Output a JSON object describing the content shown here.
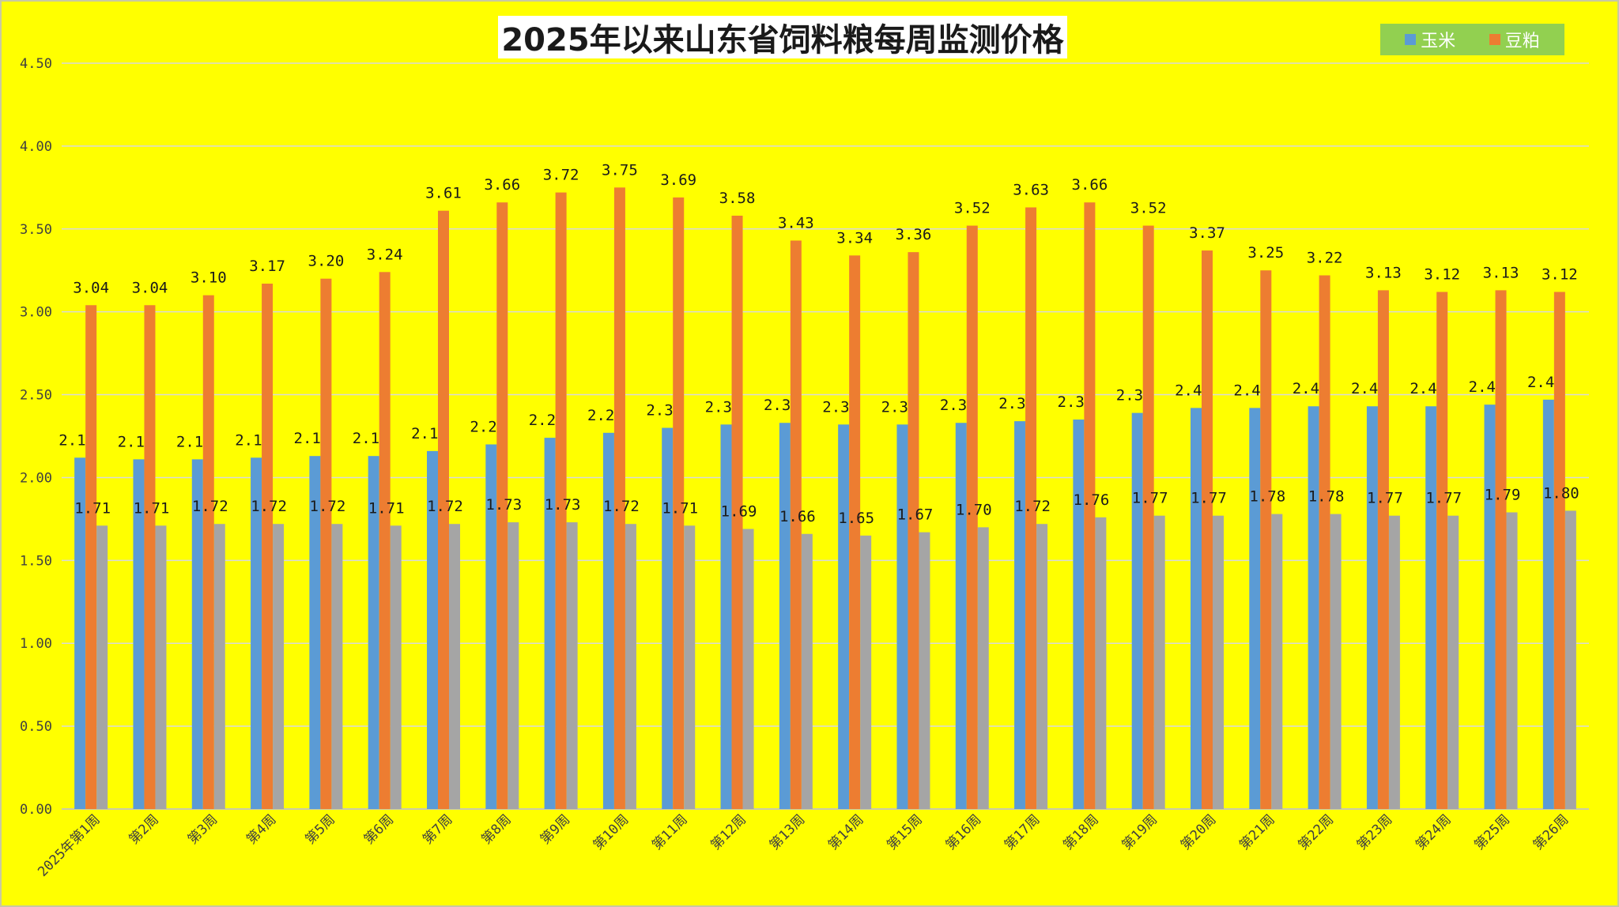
{
  "title": "2025年以来山东省饲料粮每周监测价格",
  "legend": {
    "items": [
      {
        "label": "玉米"
      },
      {
        "label": "豆粕"
      }
    ]
  },
  "colors": {
    "background": "#ffff00",
    "corn": "#5b9bd5",
    "soymeal": "#ed7d31",
    "third": "#a5a5a5",
    "legend_bg": "#92d050",
    "grid": "#d9d9d9"
  },
  "chart_data": {
    "type": "bar",
    "title": "2025年以来山东省饲料粮每周监测价格",
    "xlabel": "",
    "ylabel": "",
    "ylim": [
      0,
      4.5
    ],
    "yticks": [
      "0.00",
      "0.50",
      "1.00",
      "1.50",
      "2.00",
      "2.50",
      "3.00",
      "3.50",
      "4.00",
      "4.50"
    ],
    "grid": true,
    "legend_position": "top-right",
    "categories": [
      "2025年第1周",
      "第2周",
      "第3周",
      "第4周",
      "第5周",
      "第6周",
      "第7周",
      "第8周",
      "第9周",
      "第10周",
      "第11周",
      "第12周",
      "第13周",
      "第14周",
      "第15周",
      "第16周",
      "第17周",
      "第18周",
      "第19周",
      "第20周",
      "第21周",
      "第22周",
      "第23周",
      "第24周",
      "第25周",
      "第26周"
    ],
    "series": [
      {
        "name": "玉米",
        "color": "#5b9bd5",
        "values": [
          2.12,
          2.11,
          2.11,
          2.12,
          2.13,
          2.13,
          2.16,
          2.2,
          2.24,
          2.27,
          2.3,
          2.32,
          2.33,
          2.32,
          2.32,
          2.33,
          2.34,
          2.35,
          2.39,
          2.42,
          2.42,
          2.43,
          2.43,
          2.43,
          2.44,
          2.47
        ],
        "labels": [
          "2.12",
          "2.11",
          "2.11",
          "2.12",
          "2.13",
          "2.13",
          "2.16",
          "2.20",
          "2.24",
          "2.27",
          "2.30",
          "2.32",
          "2.33",
          "2.32",
          "2.32",
          "2.33",
          "2.34",
          "2.35",
          "2.39",
          "2.42",
          "2.42",
          "2.43",
          "2.43",
          "2.43",
          "2.44",
          "2.47"
        ]
      },
      {
        "name": "豆粕",
        "color": "#ed7d31",
        "values": [
          3.04,
          3.04,
          3.1,
          3.17,
          3.2,
          3.24,
          3.61,
          3.66,
          3.72,
          3.75,
          3.69,
          3.58,
          3.43,
          3.34,
          3.36,
          3.52,
          3.63,
          3.66,
          3.52,
          3.37,
          3.25,
          3.22,
          3.13,
          3.12,
          3.13,
          3.12
        ],
        "labels": [
          "3.04",
          "3.04",
          "3.10",
          "3.17",
          "3.20",
          "3.24",
          "3.61",
          "3.66",
          "3.72",
          "3.75",
          "3.69",
          "3.58",
          "3.43",
          "3.34",
          "3.36",
          "3.52",
          "3.63",
          "3.66",
          "3.52",
          "3.37",
          "3.25",
          "3.22",
          "3.13",
          "3.12",
          "3.13",
          "3.12"
        ]
      },
      {
        "color": "#a5a5a5",
        "values": [
          1.71,
          1.71,
          1.72,
          1.72,
          1.72,
          1.71,
          1.72,
          1.73,
          1.73,
          1.72,
          1.71,
          1.69,
          1.66,
          1.65,
          1.67,
          1.7,
          1.72,
          1.76,
          1.77,
          1.77,
          1.78,
          1.78,
          1.77,
          1.77,
          1.79,
          1.8
        ],
        "labels": [
          "1.71",
          "1.71",
          "1.72",
          "1.72",
          "1.72",
          "1.71",
          "1.72",
          "1.73",
          "1.73",
          "1.72",
          "1.71",
          "1.69",
          "1.66",
          "1.65",
          "1.67",
          "1.70",
          "1.72",
          "1.76",
          "1.77",
          "1.77",
          "1.78",
          "1.78",
          "1.77",
          "1.77",
          "1.79",
          "1.80"
        ]
      }
    ]
  }
}
